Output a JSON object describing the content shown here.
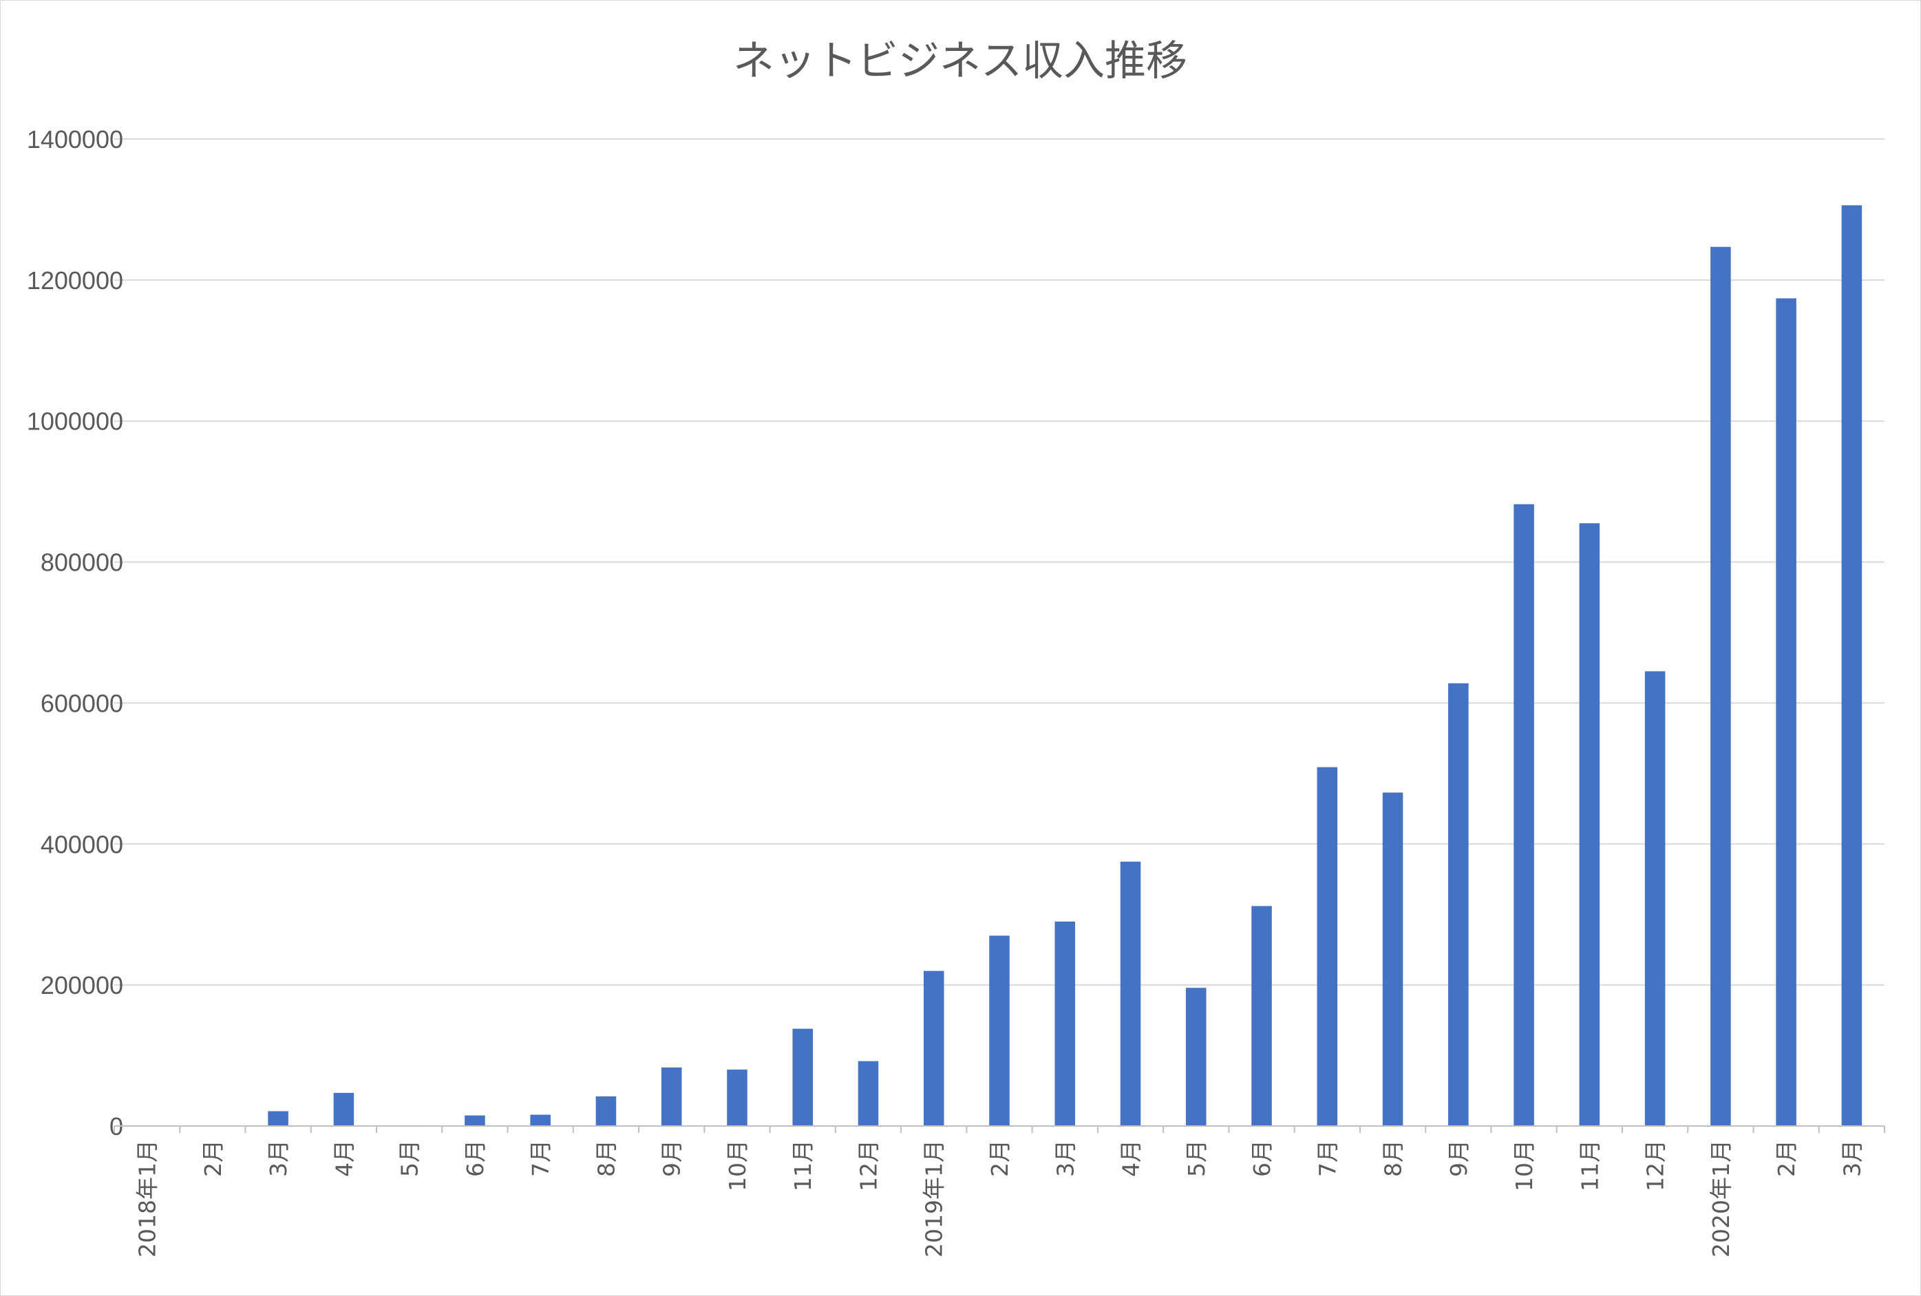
{
  "chart_data": {
    "type": "bar",
    "title": "ネットビジネス収入推移",
    "xlabel": "",
    "ylabel": "",
    "ylim": [
      0,
      1400000
    ],
    "y_ticks": [
      "0",
      "200000",
      "400000",
      "600000",
      "800000",
      "1000000",
      "1200000",
      "1400000"
    ],
    "grid": true,
    "legend": "none",
    "bar_color": "#4472C4",
    "categories": [
      "2018年1月",
      "2月",
      "3月",
      "4月",
      "5月",
      "6月",
      "7月",
      "8月",
      "9月",
      "10月",
      "11月",
      "12月",
      "2019年1月",
      "2月",
      "3月",
      "4月",
      "5月",
      "6月",
      "7月",
      "8月",
      "9月",
      "10月",
      "11月",
      "12月",
      "2020年1月",
      "2月",
      "3月"
    ],
    "values": [
      0,
      0,
      21000,
      47000,
      1000,
      15000,
      16000,
      42000,
      83000,
      80000,
      138000,
      92000,
      220000,
      270000,
      290000,
      375000,
      196000,
      312000,
      509000,
      473000,
      628000,
      882000,
      855000,
      645000,
      1247000,
      1174000,
      1306000
    ]
  }
}
